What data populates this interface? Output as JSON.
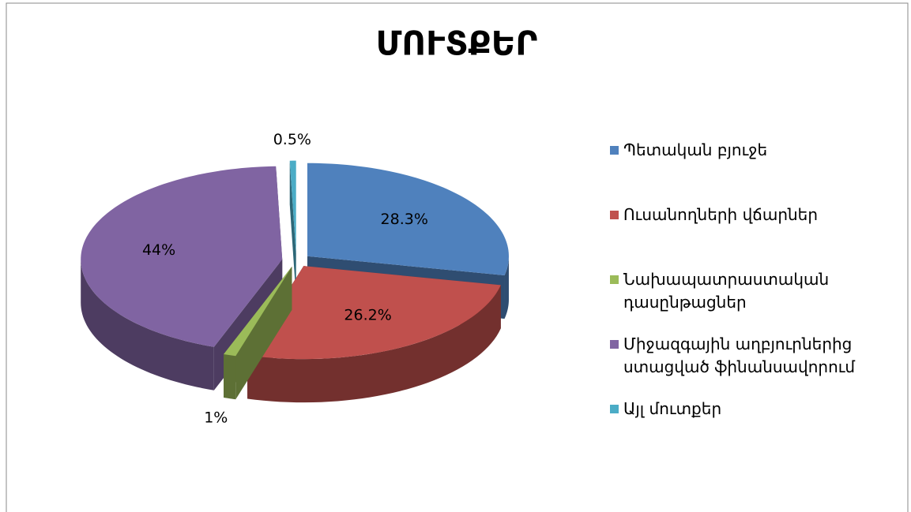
{
  "chart_data": {
    "type": "pie",
    "title": "ՄՈՒՏՔԵՐ",
    "categories": [
      "Պետական բյուջե",
      "Ուսանողների վճարներ",
      "Նախապատրաստական դասընթացներ",
      "Միջազգային աղբյուրներից ստացված ֆինանսավորում",
      "Այլ մուտքեր"
    ],
    "values": [
      28.3,
      26.2,
      1,
      44,
      0.5
    ],
    "value_labels": [
      "28.3%",
      "26.2%",
      "1%",
      "44%",
      "0.5%"
    ],
    "colors": [
      "#4f81bd",
      "#c0504d",
      "#9bbb59",
      "#8064a2",
      "#4bacc6"
    ],
    "legend": "right"
  }
}
